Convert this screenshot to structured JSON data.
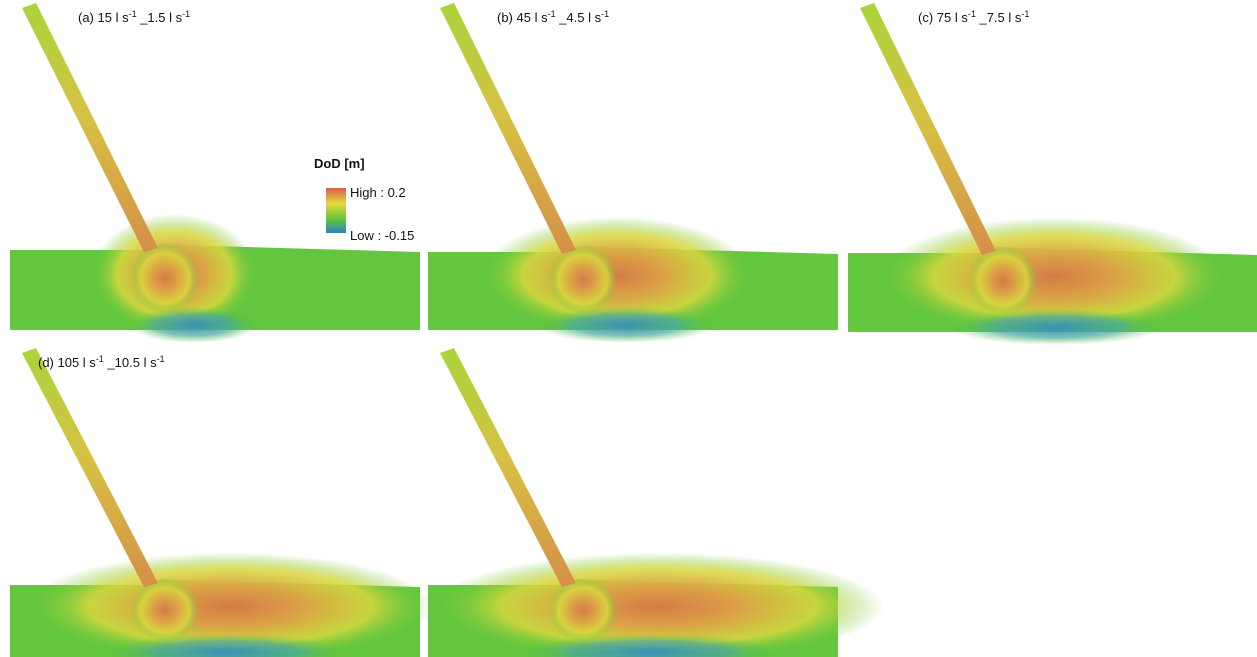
{
  "panel_labels": [
    [
      "(a) 15 l s",
      "-1",
      " _1.5 l s",
      "-1"
    ],
    [
      "(b) 45 l s",
      "-1",
      " _4.5 l s",
      "-1"
    ],
    [
      "(c) 75 l s",
      "-1",
      " _7.5 l s",
      "-1"
    ],
    [
      "(d) 105 l s",
      "-1",
      " _10.5 l s",
      "-1"
    ]
  ],
  "legend": {
    "title": "DoD [m]",
    "high": "High : 0.2",
    "low": "Low : -0.15"
  }
}
